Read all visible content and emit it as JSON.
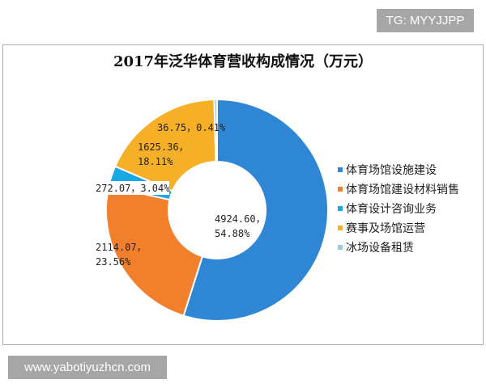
{
  "tag": "TG: MYYJJPP",
  "url": "www.yabotiyuzhcn.com",
  "chart_data": {
    "type": "pie",
    "donut": true,
    "title": "2017年泛华体育营收构成情况（万元）",
    "legend_position": "right",
    "slices": [
      {
        "name": "体育场馆设施建设",
        "value": 4924.6,
        "percent": 54.88,
        "label": "4924.60，54.88%",
        "color": "#2f86d5"
      },
      {
        "name": "体育场馆建设材料销售",
        "value": 2114.07,
        "percent": 23.56,
        "label": "2114.07，23.56%",
        "color": "#f27f2c"
      },
      {
        "name": "体育设计咨询业务",
        "value": 272.07,
        "percent": 3.04,
        "label": "272.07，3.04%",
        "color": "#1aa8e5"
      },
      {
        "name": "赛事及场馆运营",
        "value": 1625.36,
        "percent": 18.11,
        "label": "1625.36，18.11%",
        "color": "#f5b027"
      },
      {
        "name": "冰场设备租赁",
        "value": 36.75,
        "percent": 0.41,
        "label": "36.75，0.41%",
        "color": "#9dc9e1"
      }
    ]
  }
}
